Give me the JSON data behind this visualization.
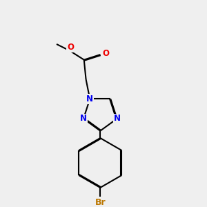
{
  "bg_color": "#efefef",
  "bond_color": "#000000",
  "N_color": "#0000EE",
  "O_color": "#EE0000",
  "Br_color": "#BB7700",
  "line_width": 1.5,
  "dbo": 0.012,
  "fig_w": 3.0,
  "fig_h": 3.0,
  "dpi": 100,
  "xlim": [
    0,
    3
  ],
  "ylim": [
    0,
    3
  ]
}
